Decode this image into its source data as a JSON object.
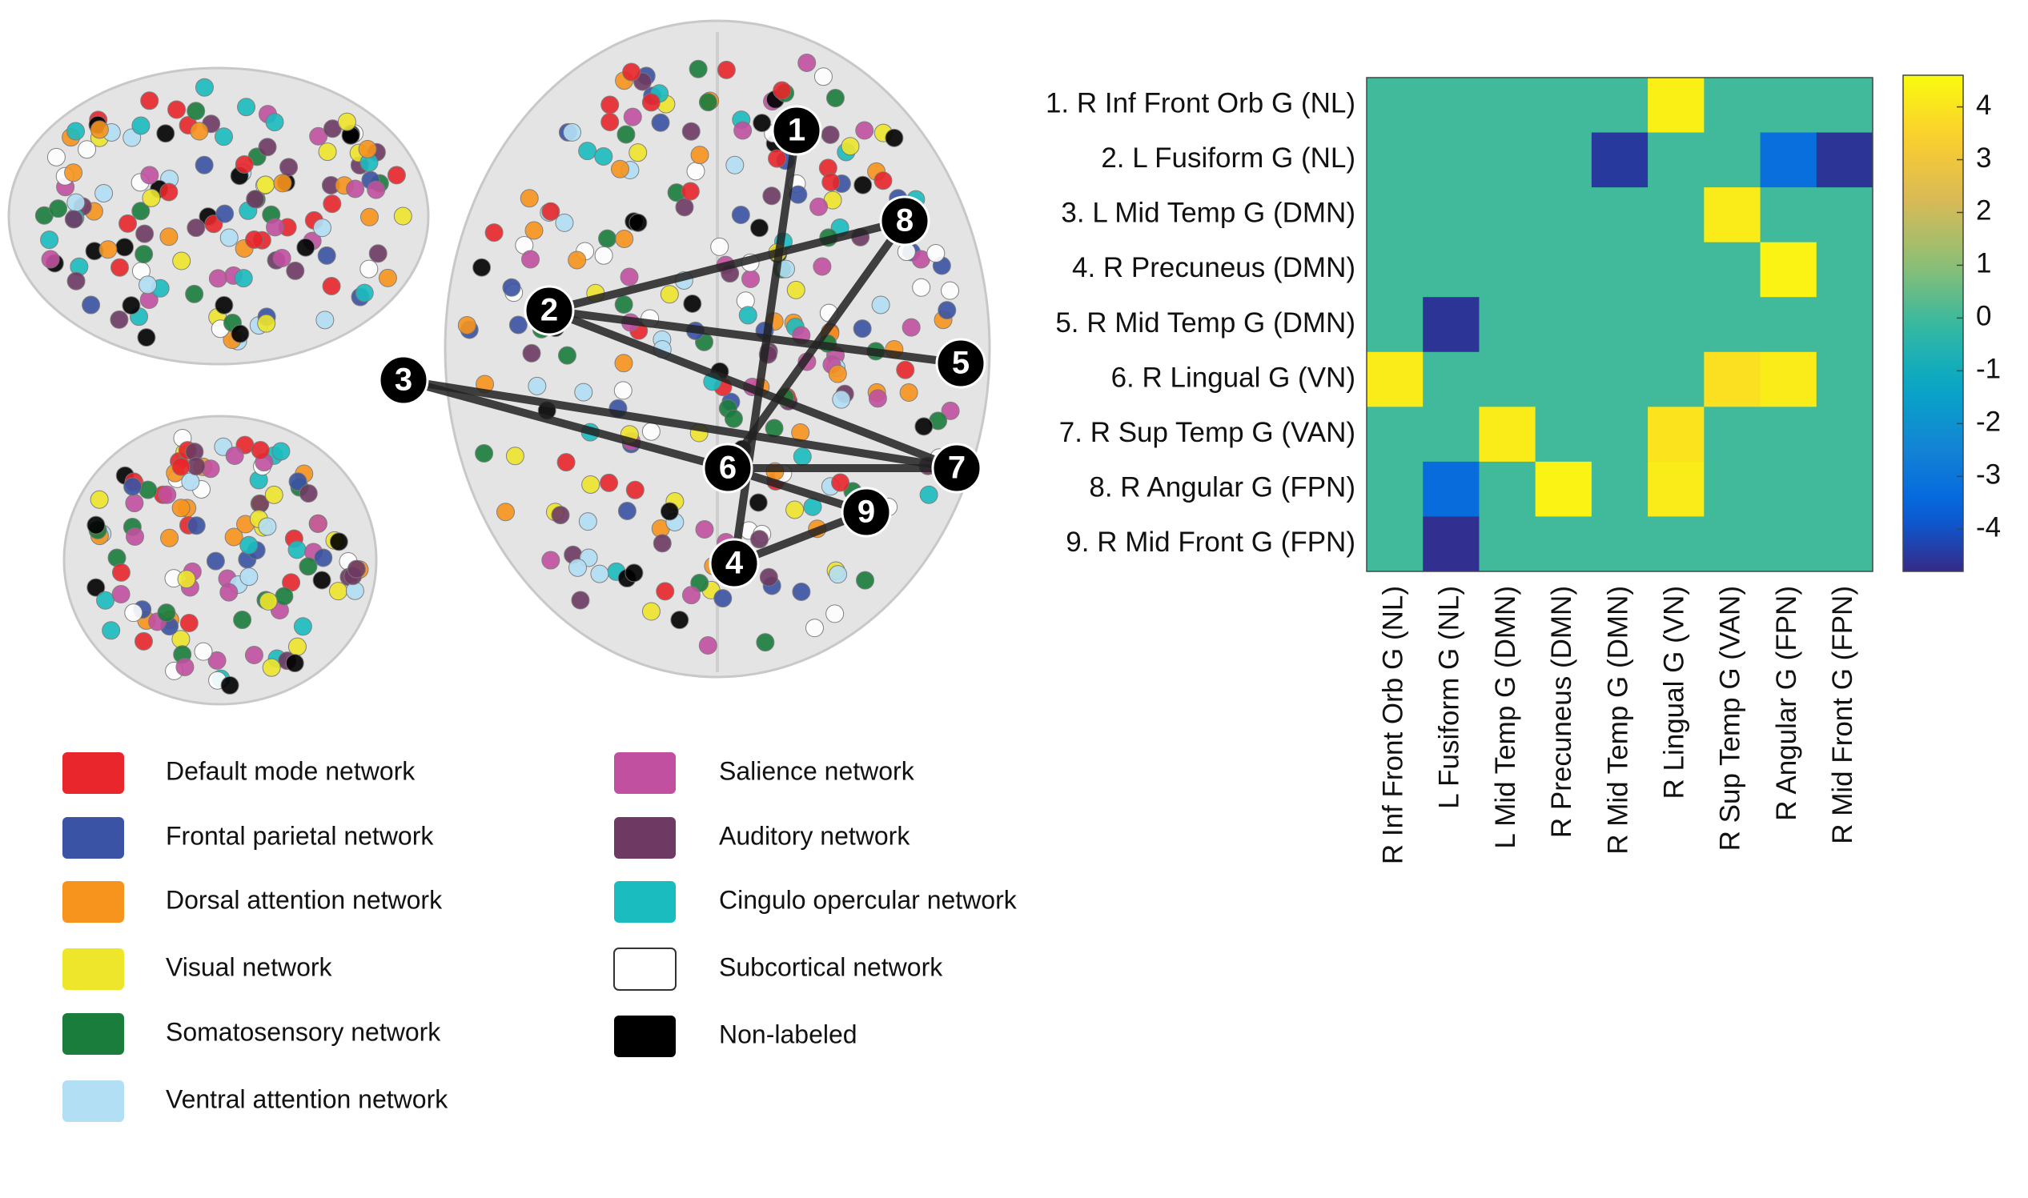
{
  "chart_data": {
    "type": "heatmap",
    "row_labels": [
      "1. R Inf Front Orb G (NL)",
      "2. L Fusiform G (NL)",
      "3. L Mid Temp G (DMN)",
      "4. R Precuneus (DMN)",
      "5. R Mid Temp G (DMN)",
      "6. R Lingual G (VN)",
      "7. R Sup Temp G (VAN)",
      "8. R Angular G (FPN)",
      "9. R Mid Front G (FPN)"
    ],
    "column_labels": [
      "R Inf Front Orb G (NL)",
      "L Fusiform G (NL)",
      "L Mid Temp G (DMN)",
      "R Precuneus (DMN)",
      "R Mid Temp G (DMN)",
      "R Lingual G (VN)",
      "R Sup Temp G (VAN)",
      "R Angular G (FPN)",
      "R Mid Front G (FPN)"
    ],
    "values": [
      [
        0,
        0,
        0,
        0,
        0,
        4.3,
        0,
        0,
        0
      ],
      [
        0,
        0,
        0,
        0,
        -4.5,
        0,
        0,
        -3.2,
        -4.6
      ],
      [
        0,
        0,
        0,
        0,
        0,
        0,
        4.2,
        0,
        0
      ],
      [
        0,
        0,
        0,
        0,
        0,
        0,
        0,
        4.4,
        0
      ],
      [
        0,
        -4.6,
        0,
        0,
        0,
        0,
        0,
        0,
        0
      ],
      [
        4.2,
        0,
        0,
        0,
        0,
        0,
        3.9,
        4.2,
        0
      ],
      [
        0,
        0,
        4.2,
        0,
        0,
        4.0,
        0,
        0,
        0
      ],
      [
        0,
        -3.3,
        0,
        4.4,
        0,
        4.2,
        0,
        0,
        0
      ],
      [
        0,
        -4.7,
        0,
        0,
        0,
        0,
        0,
        0,
        0
      ]
    ],
    "colormap": "parula",
    "zlim": [
      -4.8,
      4.6
    ],
    "zticks": [
      4,
      3,
      2,
      1,
      0,
      -1,
      -2,
      -3,
      -4
    ]
  },
  "legend": [
    {
      "name": "Default mode network",
      "color": "#e8262b"
    },
    {
      "name": "Frontal parietal network",
      "color": "#3a53a4"
    },
    {
      "name": "Dorsal attention network",
      "color": "#f7941d"
    },
    {
      "name": "Visual network",
      "color": "#eee62b"
    },
    {
      "name": "Somatosensory network",
      "color": "#1a7d3c"
    },
    {
      "name": "Ventral attention network",
      "color": "#b3dff5"
    },
    {
      "name": "Salience network",
      "color": "#c150a0"
    },
    {
      "name": "Auditory network",
      "color": "#6e3a63"
    },
    {
      "name": "Cingulo opercular network",
      "color": "#1bbcc0"
    },
    {
      "name": "Subcortical network",
      "color": "#ffffff"
    },
    {
      "name": "Non-labeled",
      "color": "#000000"
    }
  ],
  "brain_markers": [
    "1",
    "2",
    "3",
    "4",
    "5",
    "6",
    "7",
    "8",
    "9"
  ]
}
